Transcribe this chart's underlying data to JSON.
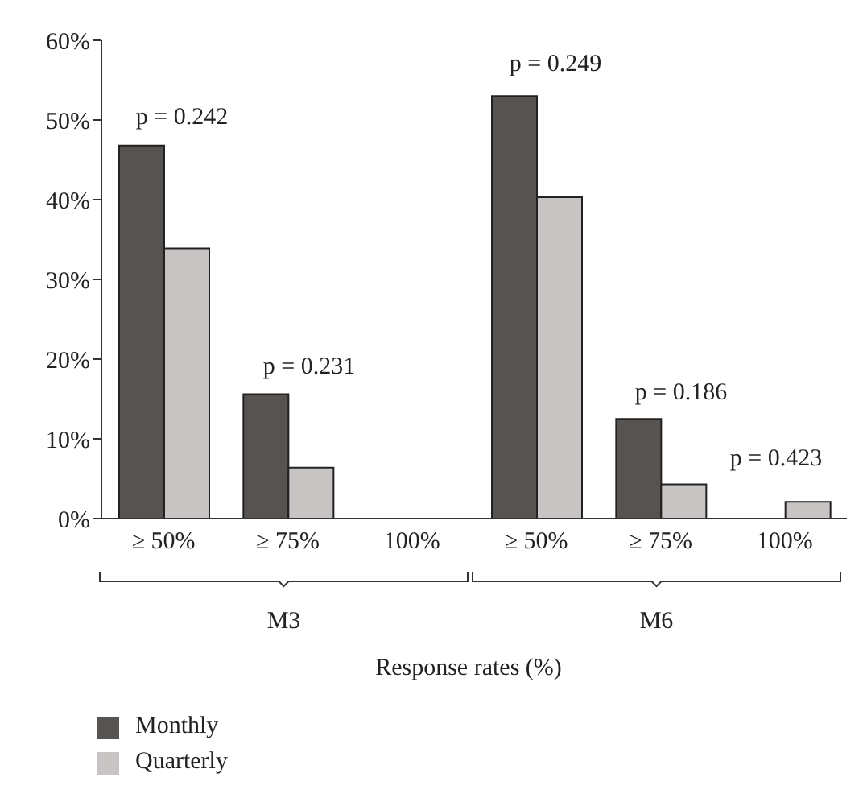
{
  "chart_data": {
    "type": "bar",
    "categories": [
      "≥ 50%",
      "≥ 75%",
      "100%",
      "≥ 50%",
      "≥ 75%",
      "100%"
    ],
    "series": [
      {
        "name": "Monthly",
        "color": "#575351",
        "values": [
          46.8,
          15.6,
          0,
          53.0,
          12.5,
          0
        ]
      },
      {
        "name": "Quarterly",
        "color": "#c8c4c3",
        "values": [
          33.9,
          6.4,
          0,
          40.3,
          4.3,
          2.1
        ]
      }
    ],
    "ylim": [
      0,
      60
    ],
    "yticks": [
      {
        "value": 0,
        "label": "0%"
      },
      {
        "value": 10,
        "label": "10%"
      },
      {
        "value": 20,
        "label": "20%"
      },
      {
        "value": 30,
        "label": "30%"
      },
      {
        "value": 40,
        "label": "40%"
      },
      {
        "value": 50,
        "label": "50%"
      },
      {
        "value": 60,
        "label": "60%"
      }
    ],
    "annotations": [
      "p = 0.242",
      "p = 0.231",
      "p = 0.249",
      "p = 0.186",
      "p = 0.423",
      "M3",
      "M6",
      "Response rates (%)"
    ],
    "grid": false,
    "legend": "bottom left"
  }
}
